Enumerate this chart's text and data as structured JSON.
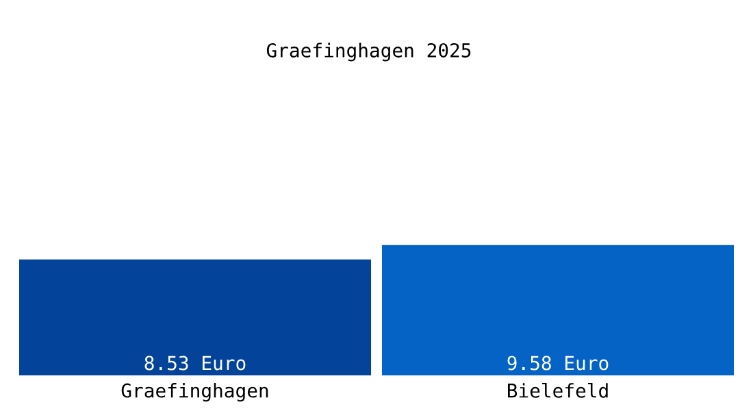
{
  "chart_data": {
    "type": "bar",
    "title": "Graefinghagen 2025",
    "categories": [
      "Graefinghagen",
      "Bielefeld"
    ],
    "values": [
      8.53,
      9.58
    ],
    "colors": [
      "#03449a",
      "#0563c6"
    ],
    "value_labels": [
      "8.53 Euro",
      "9.58 Euro"
    ],
    "grid": false,
    "legend": false
  }
}
